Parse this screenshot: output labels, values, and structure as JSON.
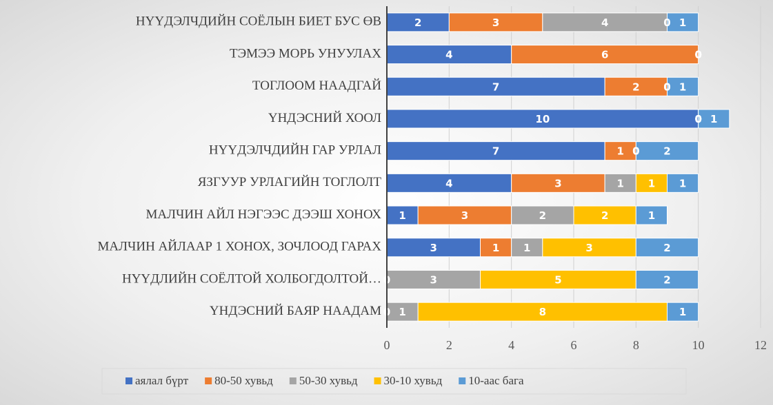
{
  "chart_data": {
    "type": "bar",
    "orientation": "horizontal",
    "stacked": true,
    "categories": [
      "НҮҮДЭЛЧДИЙН СОЁЛЫН БИЕТ БУС ӨВ",
      "ТЭМЭЭ МОРЬ УНУУЛАХ",
      "ТОГЛООМ НААДГАЙ",
      "ҮНДЭСНИЙ ХООЛ",
      "НҮҮДЭЛЧДИЙН ГАР УРЛАЛ",
      "ЯЗГУУР УРЛАГИЙН ТОГЛОЛТ",
      "МАЛЧИН АЙЛ НЭГЭЭС ДЭЭШ ХОНОХ",
      "МАЛЧИН АЙЛААР 1 ХОНОХ, ЗОЧЛООД ГАРАХ",
      "НҮҮДЛИЙН СОЁЛТОЙ ХОЛБОГДОЛТОЙ…",
      "ҮНДЭСНИЙ БАЯР НААДАМ"
    ],
    "series": [
      {
        "name": "аялал бүрт",
        "color": "#4472c4",
        "values": [
          2,
          4,
          7,
          10,
          7,
          4,
          1,
          3,
          0,
          0
        ]
      },
      {
        "name": "80-50 хувьд",
        "color": "#ed7d31",
        "values": [
          3,
          6,
          2,
          0,
          1,
          3,
          3,
          1,
          0,
          0
        ]
      },
      {
        "name": "50-30 хувьд",
        "color": "#a5a5a5",
        "values": [
          4,
          0,
          0,
          0,
          0,
          1,
          2,
          1,
          3,
          1
        ]
      },
      {
        "name": "30-10 хувьд",
        "color": "#ffc000",
        "values": [
          0,
          0,
          0,
          0,
          0,
          1,
          2,
          3,
          5,
          8
        ]
      },
      {
        "name": "10-аас бага",
        "color": "#5b9bd5",
        "values": [
          1,
          0,
          1,
          1,
          2,
          1,
          1,
          2,
          2,
          1
        ]
      }
    ],
    "xlim": [
      0,
      12
    ],
    "xticks": [
      0,
      2,
      4,
      6,
      8,
      10,
      12
    ],
    "grid": true,
    "legend": "bottom"
  }
}
